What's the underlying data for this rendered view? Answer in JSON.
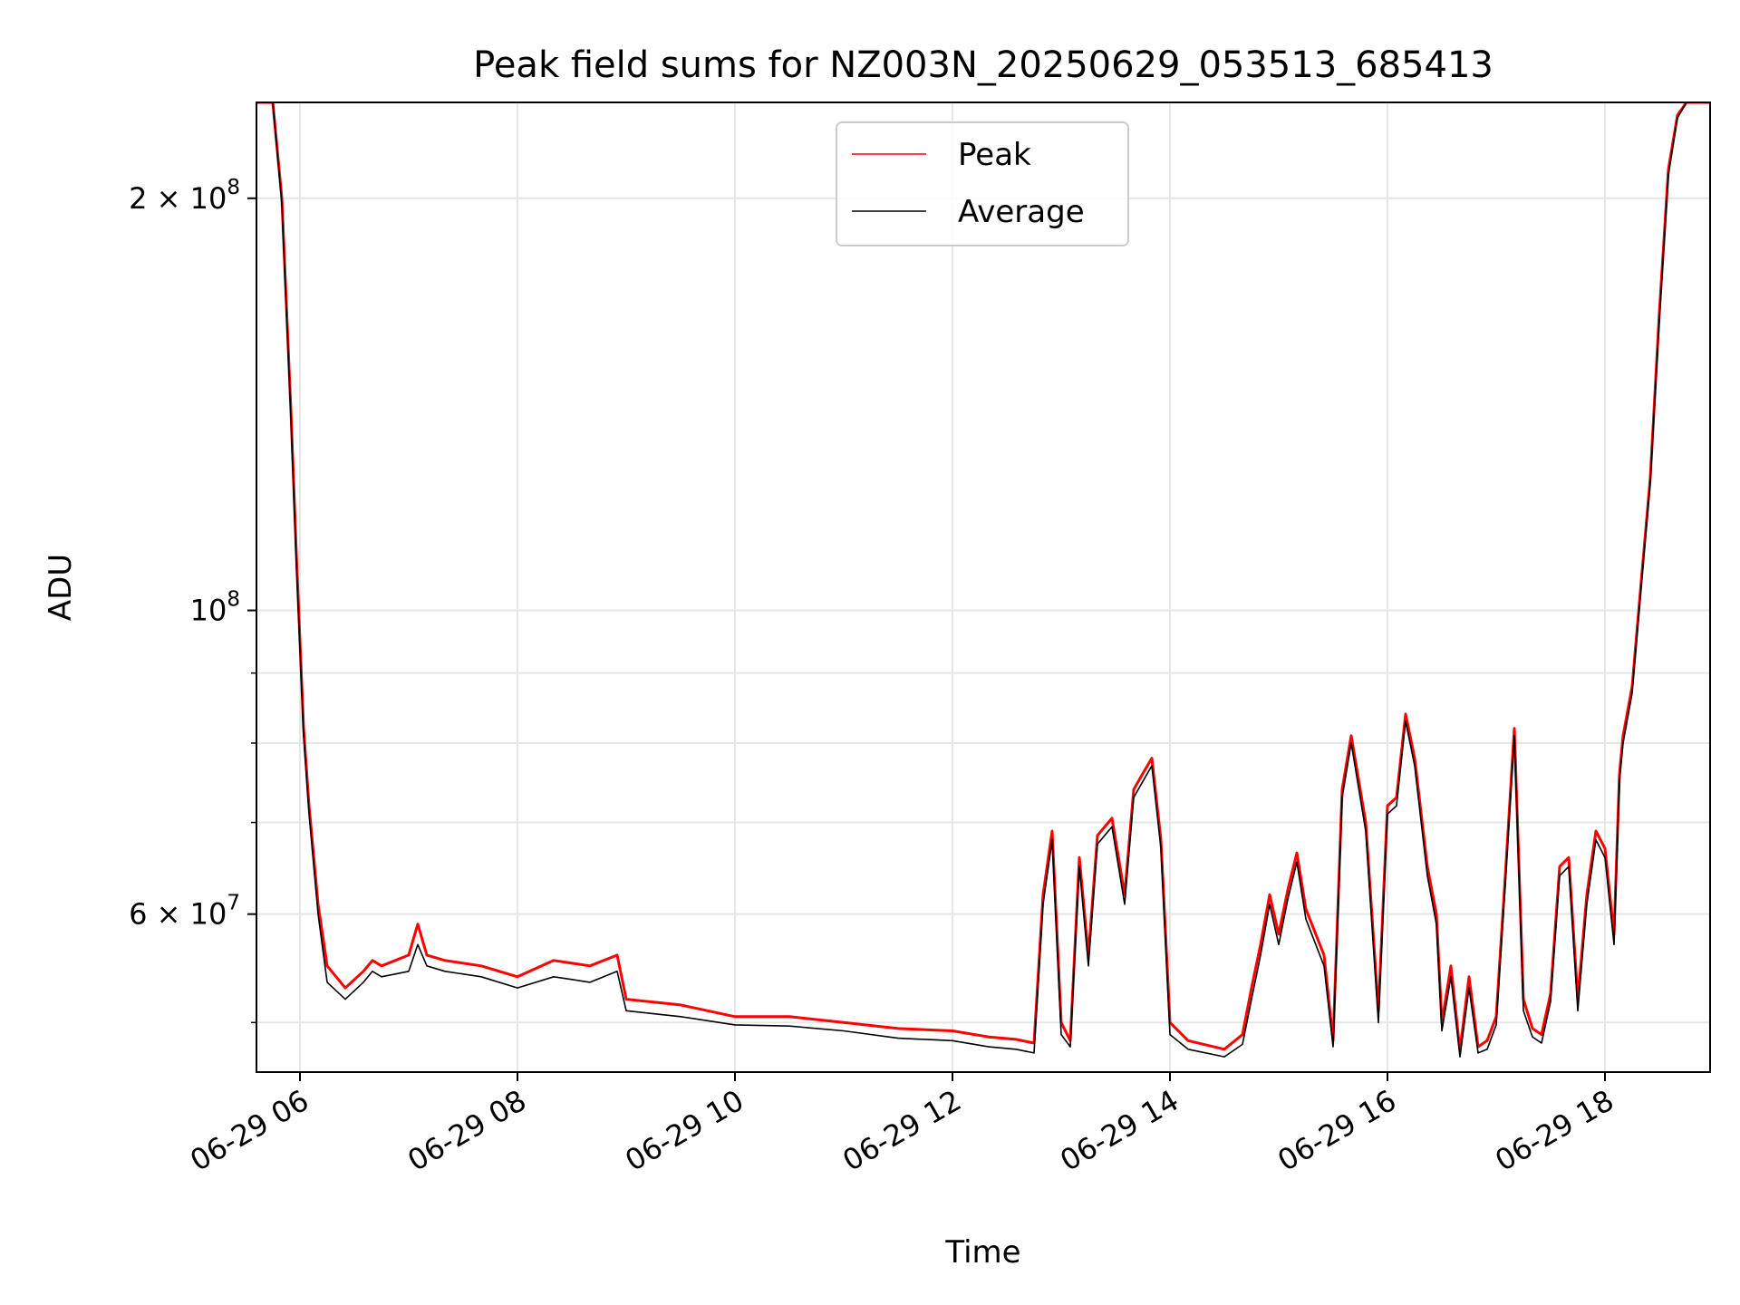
{
  "chart_data": {
    "type": "line",
    "title": "Peak field sums for NZ003N_20250629_053513_685413",
    "xlabel": "Time",
    "ylabel": "ADU",
    "yscale": "log",
    "ylim": [
      46000000,
      235000000
    ],
    "xlim": [
      "2025-06-29 05:36",
      "2025-06-29 18:58"
    ],
    "grid": true,
    "legend": {
      "position": "top-center",
      "entries": [
        "Peak",
        "Average"
      ]
    },
    "x_ticks": [
      {
        "t": "2025-06-29 06:00",
        "label": "06-29 06"
      },
      {
        "t": "2025-06-29 08:00",
        "label": "06-29 08"
      },
      {
        "t": "2025-06-29 10:00",
        "label": "06-29 10"
      },
      {
        "t": "2025-06-29 12:00",
        "label": "06-29 12"
      },
      {
        "t": "2025-06-29 14:00",
        "label": "06-29 14"
      },
      {
        "t": "2025-06-29 16:00",
        "label": "06-29 16"
      },
      {
        "t": "2025-06-29 18:00",
        "label": "06-29 18"
      }
    ],
    "y_ticks": [
      {
        "v": 200000000,
        "base": "2 × 10",
        "exp": "8"
      },
      {
        "v": 100000000,
        "base": "10",
        "exp": "8"
      },
      {
        "v": 60000000,
        "base": "6 × 10",
        "exp": "7"
      }
    ],
    "y_minor_ticks": [
      50000000,
      70000000,
      80000000,
      90000000
    ],
    "series": [
      {
        "name": "Peak",
        "color": "#ff0000",
        "x": [
          "2025-06-29 05:36",
          "2025-06-29 05:45",
          "2025-06-29 05:50",
          "2025-06-29 05:55",
          "2025-06-29 05:58",
          "2025-06-29 06:02",
          "2025-06-29 06:05",
          "2025-06-29 06:10",
          "2025-06-29 06:15",
          "2025-06-29 06:25",
          "2025-06-29 06:35",
          "2025-06-29 06:40",
          "2025-06-29 06:45",
          "2025-06-29 07:00",
          "2025-06-29 07:05",
          "2025-06-29 07:10",
          "2025-06-29 07:20",
          "2025-06-29 07:40",
          "2025-06-29 08:00",
          "2025-06-29 08:20",
          "2025-06-29 08:40",
          "2025-06-29 08:55",
          "2025-06-29 09:00",
          "2025-06-29 09:30",
          "2025-06-29 10:00",
          "2025-06-29 10:30",
          "2025-06-29 11:00",
          "2025-06-29 11:30",
          "2025-06-29 12:00",
          "2025-06-29 12:20",
          "2025-06-29 12:35",
          "2025-06-29 12:45",
          "2025-06-29 12:50",
          "2025-06-29 12:55",
          "2025-06-29 13:00",
          "2025-06-29 13:05",
          "2025-06-29 13:10",
          "2025-06-29 13:15",
          "2025-06-29 13:20",
          "2025-06-29 13:28",
          "2025-06-29 13:35",
          "2025-06-29 13:40",
          "2025-06-29 13:45",
          "2025-06-29 13:50",
          "2025-06-29 13:55",
          "2025-06-29 14:00",
          "2025-06-29 14:10",
          "2025-06-29 14:30",
          "2025-06-29 14:40",
          "2025-06-29 14:45",
          "2025-06-29 14:50",
          "2025-06-29 14:55",
          "2025-06-29 15:00",
          "2025-06-29 15:05",
          "2025-06-29 15:10",
          "2025-06-29 15:15",
          "2025-06-29 15:25",
          "2025-06-29 15:30",
          "2025-06-29 15:35",
          "2025-06-29 15:40",
          "2025-06-29 15:48",
          "2025-06-29 15:55",
          "2025-06-29 16:00",
          "2025-06-29 16:05",
          "2025-06-29 16:10",
          "2025-06-29 16:15",
          "2025-06-29 16:22",
          "2025-06-29 16:27",
          "2025-06-29 16:30",
          "2025-06-29 16:35",
          "2025-06-29 16:40",
          "2025-06-29 16:45",
          "2025-06-29 16:50",
          "2025-06-29 16:55",
          "2025-06-29 17:00",
          "2025-06-29 17:05",
          "2025-06-29 17:10",
          "2025-06-29 17:15",
          "2025-06-29 17:20",
          "2025-06-29 17:25",
          "2025-06-29 17:30",
          "2025-06-29 17:35",
          "2025-06-29 17:40",
          "2025-06-29 17:45",
          "2025-06-29 17:50",
          "2025-06-29 17:55",
          "2025-06-29 18:00",
          "2025-06-29 18:05",
          "2025-06-29 18:08",
          "2025-06-29 18:10",
          "2025-06-29 18:15",
          "2025-06-29 18:20",
          "2025-06-29 18:25",
          "2025-06-29 18:30",
          "2025-06-29 18:35",
          "2025-06-29 18:40",
          "2025-06-29 18:45",
          "2025-06-29 18:50",
          "2025-06-29 18:58"
        ],
        "y": [
          235000000,
          235000000,
          200000000,
          140000000,
          110000000,
          82000000,
          72000000,
          61000000,
          55000000,
          53000000,
          54500000,
          55500000,
          55000000,
          56000000,
          59000000,
          56000000,
          55500000,
          55000000,
          54000000,
          55500000,
          55000000,
          56000000,
          52000000,
          51500000,
          50500000,
          50500000,
          50000000,
          49500000,
          49300000,
          48800000,
          48600000,
          48300000,
          62000000,
          69000000,
          50000000,
          48500000,
          66000000,
          56000000,
          68500000,
          70500000,
          62000000,
          74000000,
          76000000,
          78000000,
          68000000,
          50000000,
          48500000,
          47800000,
          49000000,
          53000000,
          57000000,
          62000000,
          58000000,
          62500000,
          66500000,
          60500000,
          56000000,
          48500000,
          74000000,
          81000000,
          70000000,
          51000000,
          72000000,
          73000000,
          84000000,
          78000000,
          65000000,
          60000000,
          50000000,
          55000000,
          47700000,
          54000000,
          48000000,
          48500000,
          50500000,
          64000000,
          82000000,
          52000000,
          49500000,
          49000000,
          52500000,
          65000000,
          66000000,
          52000000,
          62000000,
          69000000,
          67000000,
          58000000,
          76000000,
          81000000,
          88000000,
          105000000,
          125000000,
          165000000,
          210000000,
          230000000,
          235000000,
          235000000,
          235000000
        ]
      },
      {
        "name": "Average",
        "color": "#000000",
        "x": [
          "2025-06-29 05:36",
          "2025-06-29 05:45",
          "2025-06-29 05:50",
          "2025-06-29 05:55",
          "2025-06-29 05:58",
          "2025-06-29 06:02",
          "2025-06-29 06:05",
          "2025-06-29 06:10",
          "2025-06-29 06:15",
          "2025-06-29 06:25",
          "2025-06-29 06:35",
          "2025-06-29 06:40",
          "2025-06-29 06:45",
          "2025-06-29 07:00",
          "2025-06-29 07:05",
          "2025-06-29 07:10",
          "2025-06-29 07:20",
          "2025-06-29 07:40",
          "2025-06-29 08:00",
          "2025-06-29 08:20",
          "2025-06-29 08:40",
          "2025-06-29 08:55",
          "2025-06-29 09:00",
          "2025-06-29 09:30",
          "2025-06-29 10:00",
          "2025-06-29 10:30",
          "2025-06-29 11:00",
          "2025-06-29 11:30",
          "2025-06-29 12:00",
          "2025-06-29 12:20",
          "2025-06-29 12:35",
          "2025-06-29 12:45",
          "2025-06-29 12:50",
          "2025-06-29 12:55",
          "2025-06-29 13:00",
          "2025-06-29 13:05",
          "2025-06-29 13:10",
          "2025-06-29 13:15",
          "2025-06-29 13:20",
          "2025-06-29 13:28",
          "2025-06-29 13:35",
          "2025-06-29 13:40",
          "2025-06-29 13:45",
          "2025-06-29 13:50",
          "2025-06-29 13:55",
          "2025-06-29 14:00",
          "2025-06-29 14:10",
          "2025-06-29 14:30",
          "2025-06-29 14:40",
          "2025-06-29 14:45",
          "2025-06-29 14:50",
          "2025-06-29 14:55",
          "2025-06-29 15:00",
          "2025-06-29 15:05",
          "2025-06-29 15:10",
          "2025-06-29 15:15",
          "2025-06-29 15:25",
          "2025-06-29 15:30",
          "2025-06-29 15:35",
          "2025-06-29 15:40",
          "2025-06-29 15:48",
          "2025-06-29 15:55",
          "2025-06-29 16:00",
          "2025-06-29 16:05",
          "2025-06-29 16:10",
          "2025-06-29 16:15",
          "2025-06-29 16:22",
          "2025-06-29 16:27",
          "2025-06-29 16:30",
          "2025-06-29 16:35",
          "2025-06-29 16:40",
          "2025-06-29 16:45",
          "2025-06-29 16:50",
          "2025-06-29 16:55",
          "2025-06-29 17:00",
          "2025-06-29 17:05",
          "2025-06-29 17:10",
          "2025-06-29 17:15",
          "2025-06-29 17:20",
          "2025-06-29 17:25",
          "2025-06-29 17:30",
          "2025-06-29 17:35",
          "2025-06-29 17:40",
          "2025-06-29 17:45",
          "2025-06-29 17:50",
          "2025-06-29 17:55",
          "2025-06-29 18:00",
          "2025-06-29 18:05",
          "2025-06-29 18:08",
          "2025-06-29 18:10",
          "2025-06-29 18:15",
          "2025-06-29 18:20",
          "2025-06-29 18:25",
          "2025-06-29 18:30",
          "2025-06-29 18:35",
          "2025-06-29 18:40",
          "2025-06-29 18:45",
          "2025-06-29 18:50",
          "2025-06-29 18:58"
        ],
        "y": [
          235000000,
          235000000,
          198000000,
          138000000,
          108000000,
          81000000,
          71000000,
          60000000,
          53500000,
          52000000,
          53500000,
          54500000,
          54000000,
          54500000,
          57000000,
          55000000,
          54500000,
          54000000,
          53000000,
          54000000,
          53500000,
          54500000,
          51000000,
          50500000,
          49800000,
          49700000,
          49300000,
          48700000,
          48500000,
          48000000,
          47800000,
          47500000,
          61000000,
          68000000,
          49000000,
          48000000,
          65000000,
          55000000,
          67500000,
          69500000,
          61000000,
          73000000,
          75000000,
          77000000,
          67000000,
          49000000,
          47800000,
          47200000,
          48200000,
          52000000,
          56000000,
          61000000,
          57000000,
          61500000,
          65500000,
          59500000,
          55000000,
          48000000,
          73000000,
          80000000,
          69000000,
          50000000,
          71000000,
          72000000,
          83000000,
          77000000,
          64000000,
          59000000,
          49300000,
          54000000,
          47200000,
          53000000,
          47500000,
          47800000,
          49800000,
          63000000,
          81000000,
          51000000,
          48800000,
          48300000,
          51800000,
          64000000,
          65000000,
          51000000,
          61000000,
          68000000,
          66000000,
          57000000,
          75000000,
          80000000,
          87000000,
          104000000,
          124000000,
          163000000,
          208000000,
          229000000,
          235000000,
          235000000,
          235000000
        ]
      }
    ]
  }
}
